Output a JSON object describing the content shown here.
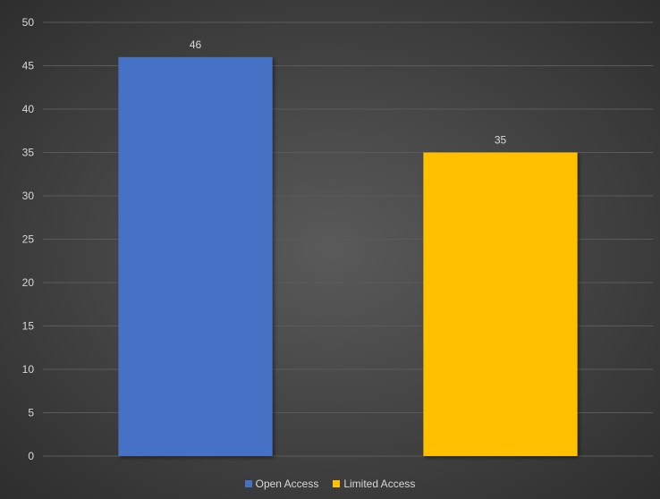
{
  "chart_data": {
    "type": "bar",
    "categories": [
      "Open Access",
      "Limited Access"
    ],
    "values": [
      46,
      35
    ],
    "colors": [
      "#4472c4",
      "#ffc000"
    ],
    "title": "",
    "xlabel": "",
    "ylabel": "",
    "ylim": [
      0,
      50
    ],
    "yticks": [
      0,
      5,
      10,
      15,
      20,
      25,
      30,
      35,
      40,
      45,
      50
    ],
    "grid": true,
    "legend": {
      "position": "bottom",
      "entries": [
        {
          "label": "Open Access",
          "color": "#4472c4"
        },
        {
          "label": "Limited Access",
          "color": "#ffc000"
        }
      ]
    }
  }
}
